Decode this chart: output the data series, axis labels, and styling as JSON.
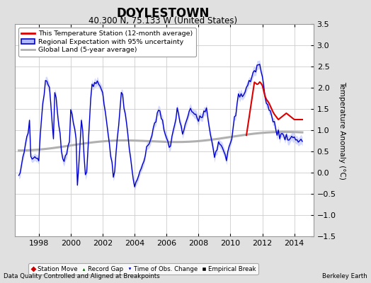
{
  "title": "DOYLESTOWN",
  "subtitle": "40.300 N, 75.133 W (United States)",
  "ylabel": "Temperature Anomaly (°C)",
  "footer_left": "Data Quality Controlled and Aligned at Breakpoints",
  "footer_right": "Berkeley Earth",
  "xlim": [
    1996.5,
    2015.2
  ],
  "ylim": [
    -1.5,
    3.5
  ],
  "yticks": [
    -1.5,
    -1.0,
    -0.5,
    0.0,
    0.5,
    1.0,
    1.5,
    2.0,
    2.5,
    3.0,
    3.5
  ],
  "xticks": [
    1998,
    2000,
    2002,
    2004,
    2006,
    2008,
    2010,
    2012,
    2014
  ],
  "bg_color": "#e0e0e0",
  "plot_bg_color": "#ffffff",
  "grid_color": "#cccccc",
  "blue_line_color": "#0000cc",
  "blue_fill_color": "#b0b8ff",
  "red_line_color": "#dd0000",
  "gray_line_color": "#b0b0b0",
  "legend_marker_colors": {
    "station_move": "#cc0000",
    "record_gap": "#006600",
    "obs_change": "#0000cc",
    "empirical_break": "#000000"
  }
}
